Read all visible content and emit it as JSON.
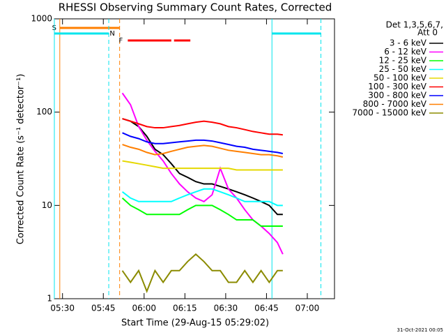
{
  "chart_data": {
    "type": "line",
    "title": "RHESSI Observing Summary Count Rates, Corrected",
    "x_label": "Start Time (29-Aug-15 05:29:02)",
    "y_label": "Corrected Count Rate (s⁻¹ detector⁻¹)",
    "legend_title": [
      "Det 1,3,5,6,7,",
      "Att 0"
    ],
    "footer": "31-Oct-2021 00:05",
    "log_y": true,
    "xlim": [
      "05:27",
      "07:10"
    ],
    "xticks": [
      "05:30",
      "05:45",
      "06:00",
      "06:15",
      "06:30",
      "06:45",
      "07:00"
    ],
    "ylim": [
      1,
      1000
    ],
    "yticks": [
      1,
      10,
      100,
      1000
    ],
    "flags": [
      {
        "label": "S",
        "color": "#ff7f00",
        "intervals": [
          [
            "05:29",
            "05:51"
          ]
        ]
      },
      {
        "label": "N",
        "color": "#00e5ee",
        "intervals": [
          [
            "05:27",
            "05:47"
          ],
          [
            "06:47",
            "07:05"
          ]
        ]
      },
      {
        "label": "F",
        "color": "#ff0000",
        "intervals": [
          [
            "05:54",
            "06:10"
          ],
          [
            "06:11",
            "06:17"
          ]
        ]
      }
    ],
    "x": [
      "05:52",
      "05:55",
      "05:58",
      "06:01",
      "06:04",
      "06:07",
      "06:10",
      "06:13",
      "06:16",
      "06:19",
      "06:22",
      "06:25",
      "06:28",
      "06:31",
      "06:34",
      "06:37",
      "06:40",
      "06:43",
      "06:46",
      "06:49",
      "06:51"
    ],
    "series": [
      {
        "name": "3 - 6 keV",
        "color": "#000000",
        "values": [
          85,
          80,
          70,
          55,
          40,
          35,
          28,
          22,
          20,
          18,
          17,
          17,
          16,
          15,
          14,
          13,
          12,
          11,
          10,
          8,
          8
        ]
      },
      {
        "name": "6 - 12 keV",
        "color": "#ff00ff",
        "values": [
          160,
          120,
          70,
          50,
          38,
          30,
          22,
          17,
          14,
          12,
          11,
          13,
          25,
          15,
          12,
          9,
          7,
          6,
          5,
          4,
          3
        ]
      },
      {
        "name": "12 - 25 keV",
        "color": "#00ff00",
        "values": [
          12,
          10,
          9,
          8,
          8,
          8,
          8,
          8,
          9,
          10,
          10,
          10,
          9,
          8,
          7,
          7,
          7,
          6,
          6,
          6,
          6
        ]
      },
      {
        "name": "25 - 50 keV",
        "color": "#00ffff",
        "values": [
          14,
          12,
          11,
          11,
          11,
          11,
          11,
          12,
          13,
          14,
          15,
          15,
          14,
          13,
          12,
          11,
          11,
          11,
          11,
          10,
          10
        ]
      },
      {
        "name": "50 - 100 keV",
        "color": "#e5d800",
        "values": [
          30,
          29,
          28,
          27,
          26,
          25,
          25,
          25,
          25,
          25,
          25,
          25,
          25,
          25,
          24,
          24,
          24,
          24,
          24,
          24,
          24
        ]
      },
      {
        "name": "100 - 300 keV",
        "color": "#ff0000",
        "values": [
          85,
          80,
          75,
          70,
          68,
          68,
          70,
          72,
          75,
          78,
          80,
          78,
          75,
          70,
          68,
          65,
          62,
          60,
          58,
          58,
          57
        ]
      },
      {
        "name": "300 - 800 keV",
        "color": "#0000ff",
        "values": [
          60,
          55,
          52,
          48,
          46,
          46,
          47,
          48,
          49,
          50,
          50,
          49,
          47,
          45,
          43,
          42,
          40,
          39,
          38,
          37,
          36
        ]
      },
      {
        "name": "800 - 7000 keV",
        "color": "#ff7f00",
        "values": [
          45,
          42,
          40,
          37,
          35,
          36,
          38,
          40,
          42,
          43,
          44,
          43,
          41,
          39,
          38,
          37,
          36,
          35,
          35,
          34,
          33
        ]
      },
      {
        "name": "7000 - 15000 keV",
        "color": "#8b8b00",
        "values": [
          2,
          1.5,
          2,
          1.2,
          2,
          1.5,
          2,
          2,
          2.5,
          3,
          2.5,
          2,
          2,
          1.5,
          1.5,
          2,
          1.5,
          2,
          1.5,
          2,
          2
        ]
      }
    ]
  }
}
